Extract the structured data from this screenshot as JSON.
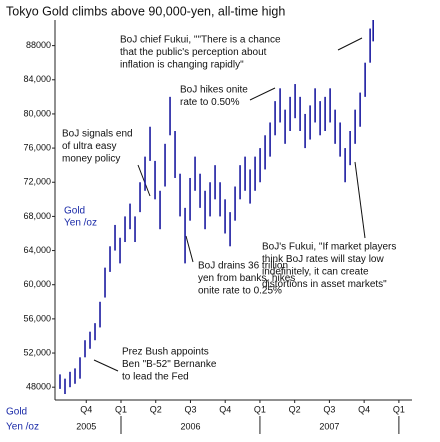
{
  "chart_data": {
    "type": "highlow",
    "title": "Tokyo Gold climbs above 90,000-yen, all-time high",
    "y_label_lines": [
      "Gold",
      "Yen /oz"
    ],
    "axis_label_lines": [
      "Gold",
      "Yen /oz"
    ],
    "color": "#1a1aa0",
    "ylim": [
      46500,
      91000
    ],
    "yticks": [
      {
        "value": 48000,
        "label": "48000"
      },
      {
        "value": 52000,
        "label": "52,000"
      },
      {
        "value": 56000,
        "label": "56,000"
      },
      {
        "value": 60000,
        "label": "60,000"
      },
      {
        "value": 64000,
        "label": "64,000"
      },
      {
        "value": 68000,
        "label": "68,000"
      },
      {
        "value": 72000,
        "label": "72,000"
      },
      {
        "value": 76000,
        "label": "76,000"
      },
      {
        "value": 80000,
        "label": "80,000"
      },
      {
        "value": 84000,
        "label": "84,000"
      },
      88000
    ],
    "xlim": [
      2005.525,
      2008.08
    ],
    "xticks": [
      {
        "value": 2005.75,
        "label": "Q4"
      },
      {
        "value": 2006.0,
        "label": "Q1"
      },
      {
        "value": 2006.25,
        "label": "Q2"
      },
      {
        "value": 2006.5,
        "label": "Q3"
      },
      {
        "value": 2006.75,
        "label": "Q4"
      },
      {
        "value": 2007.0,
        "label": "Q1"
      },
      {
        "value": 2007.25,
        "label": "Q2"
      },
      {
        "value": 2007.5,
        "label": "Q3"
      },
      {
        "value": 2007.75,
        "label": "Q4"
      },
      {
        "value": 2008.0,
        "label": "Q1"
      }
    ],
    "year_labels": [
      {
        "value": 2005.75,
        "label": "2005"
      },
      {
        "value": 2006.5,
        "label": "2006"
      },
      {
        "value": 2007.5,
        "label": "2007"
      }
    ],
    "year_boundaries": [
      2006.0,
      2007.0,
      2008.0
    ],
    "x": [
      2005.561,
      2005.597,
      2005.633,
      2005.669,
      2005.705,
      2005.741,
      2005.777,
      2005.813,
      2005.849,
      2005.885,
      2005.921,
      2005.957,
      2005.993,
      2006.029,
      2006.065,
      2006.101,
      2006.137,
      2006.173,
      2006.209,
      2006.245,
      2006.281,
      2006.317,
      2006.353,
      2006.389,
      2006.425,
      2006.461,
      2006.497,
      2006.533,
      2006.569,
      2006.605,
      2006.641,
      2006.677,
      2006.713,
      2006.749,
      2006.785,
      2006.821,
      2006.857,
      2006.893,
      2006.929,
      2006.965,
      2007.001,
      2007.037,
      2007.073,
      2007.109,
      2007.145,
      2007.181,
      2007.217,
      2007.253,
      2007.289,
      2007.325,
      2007.361,
      2007.397,
      2007.433,
      2007.469,
      2007.505,
      2007.541,
      2007.577,
      2007.613,
      2007.649,
      2007.685,
      2007.721,
      2007.757,
      2007.793,
      2007.815
    ],
    "high": [
      49500,
      49000,
      49800,
      50200,
      51500,
      53500,
      54500,
      55500,
      58000,
      62000,
      64500,
      67000,
      65500,
      68000,
      69500,
      68000,
      72000,
      75000,
      78500,
      74500,
      71000,
      76500,
      82000,
      78000,
      73000,
      69000,
      72500,
      75000,
      73000,
      71000,
      72000,
      74000,
      72000,
      70000,
      68500,
      71500,
      74000,
      75000,
      73500,
      75000,
      76000,
      77500,
      79000,
      81500,
      83000,
      80500,
      82000,
      83500,
      82000,
      80000,
      81000,
      83000,
      81500,
      82000,
      83000,
      80500,
      79000,
      76000,
      78000,
      80500,
      82500,
      86000,
      90000,
      91000
    ],
    "low": [
      47800,
      47200,
      48000,
      48400,
      49000,
      51500,
      52500,
      53500,
      55000,
      58500,
      61500,
      64000,
      62500,
      65000,
      66500,
      65000,
      68500,
      71000,
      74500,
      70000,
      66500,
      71500,
      77500,
      72500,
      68000,
      62500,
      67500,
      71000,
      69000,
      66500,
      68000,
      70000,
      68000,
      66000,
      64500,
      67500,
      70000,
      71000,
      69500,
      71000,
      72000,
      73500,
      75000,
      77500,
      79000,
      76500,
      78000,
      79500,
      78000,
      76000,
      77000,
      79000,
      77500,
      78000,
      79000,
      76500,
      75000,
      72000,
      74000,
      76500,
      78500,
      82000,
      86000,
      88500
    ],
    "annotations": [
      {
        "lines": [
          "BoJ chief Fukui, \"\"There is a chance",
          "that the public's perception about",
          "inflation is changing rapidly\""
        ]
      },
      {
        "lines": [
          "BoJ hikes onite",
          "rate to 0.50%"
        ]
      },
      {
        "lines": [
          "BoJ signals end",
          "of ultra easy",
          "money policy"
        ]
      },
      {
        "lines": [
          "BoJ's Fukui, \"If market players",
          "think BoJ rates will stay low",
          "indefinitely, it can create",
          "distortions in asset markets\""
        ]
      },
      {
        "lines": [
          "BoJ drains 36 trillion",
          "yen from banks, hikes",
          "onite rate to 0.25%"
        ]
      },
      {
        "lines": [
          "Prez Bush appoints",
          "Ben \"B-52\" Bernanke",
          "to lead the Fed"
        ]
      }
    ]
  }
}
